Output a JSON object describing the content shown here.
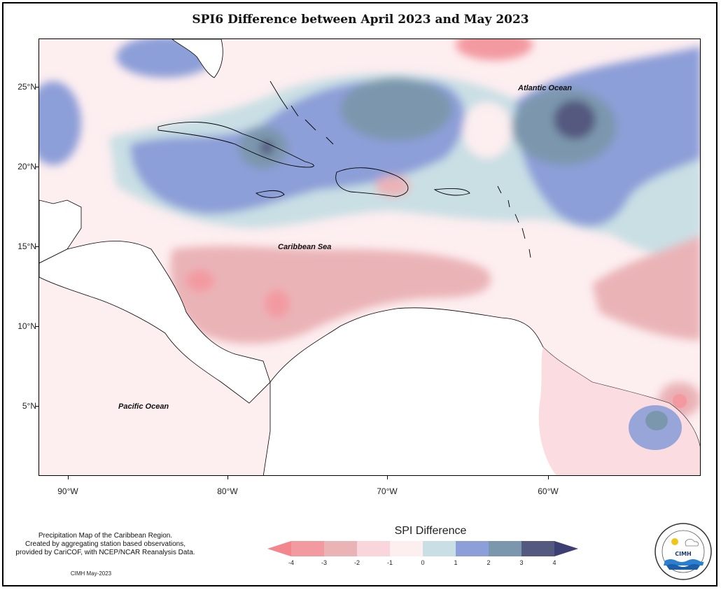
{
  "title": "SPI6 Difference between April 2023 and May 2023",
  "axes": {
    "lat_labels": [
      "25°N",
      "20°N",
      "15°N",
      "10°N",
      "5°N"
    ],
    "lon_labels": [
      "90°W",
      "80°W",
      "70°W",
      "60°W"
    ]
  },
  "ocean_labels": {
    "atlantic": "Atlantic Ocean",
    "caribbean": "Caribbean Sea",
    "pacific": "Pacific Ocean"
  },
  "note": {
    "line1": "Precipitation Map of the Caribbean Region.",
    "line2": "Created by aggregating station based observations,",
    "line3": "provided by CariCOF, with NCEP/NCAR Reanalysis Data."
  },
  "credit": "CIMH May-2023",
  "legend": {
    "title": "SPI Difference",
    "ticks": [
      "-4",
      "-3",
      "-2",
      "-1",
      "0",
      "1",
      "2",
      "3",
      "4"
    ],
    "colors": {
      "lt_-4": "#f2868c",
      "-4_-3": "#f39aa0",
      "-3_-2": "#eab4b7",
      "-2_-1": "#f9d6dc",
      "-1_0": "#fdeef0",
      "0_1": "#c9dfe4",
      "1_2": "#8d9fd8",
      "2_3": "#7b97ad",
      "3_4": "#54597f",
      "gt_4": "#3d3f72"
    }
  },
  "logo": {
    "text": "CIMH"
  }
}
